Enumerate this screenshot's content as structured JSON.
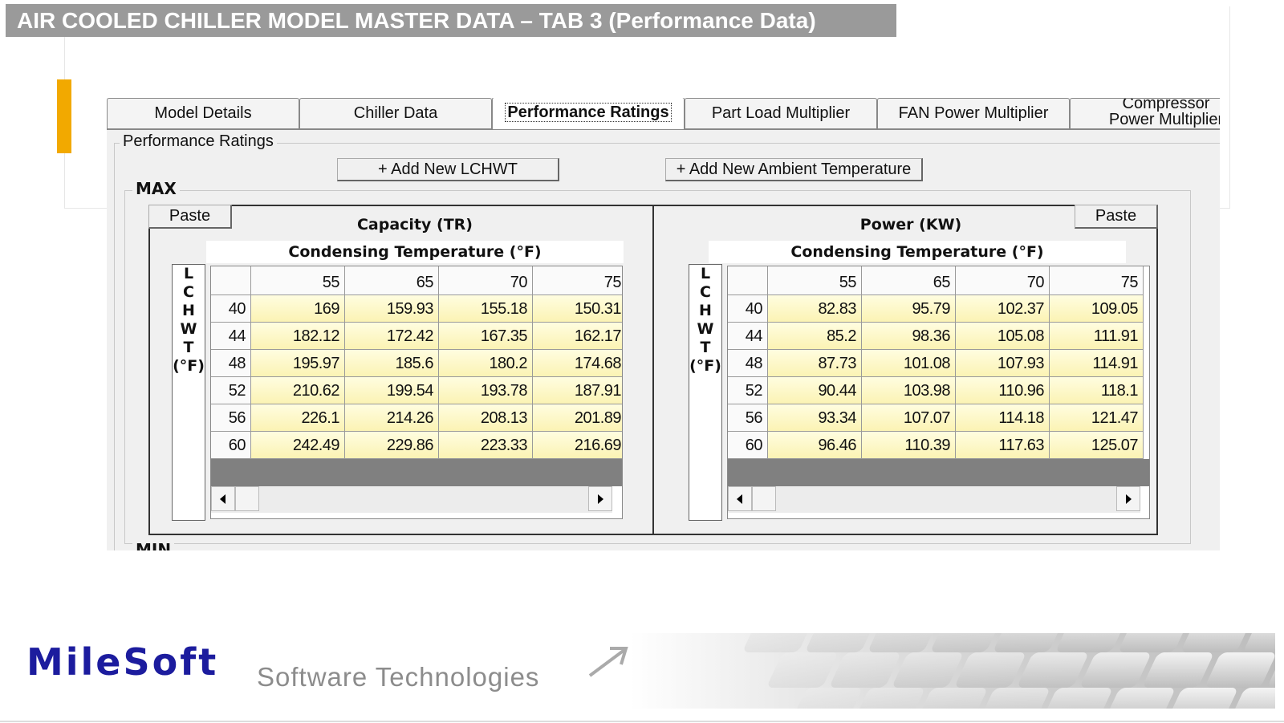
{
  "header": {
    "title": "AIR COOLED CHILLER MODEL MASTER DATA – TAB 3 (Performance Data)"
  },
  "tabs": [
    "Model Details",
    "Chiller Data",
    "Performance Ratings",
    "Part Load Multiplier",
    "FAN Power Multiplier",
    "Compressor Power Multiplier"
  ],
  "group_label": "Performance Ratings",
  "buttons": [
    "+ Add New LCHWT",
    "+ Add New Ambient Temperature"
  ],
  "max_label": "MAX",
  "min_label": "MIN",
  "grids": [
    {
      "paste": "Paste",
      "title": "Capacity (TR)",
      "subtitle": "Condensing Temperature (°F)",
      "row_axis": [
        "L",
        "C",
        "H",
        "W",
        "T",
        "(°F)"
      ],
      "columns": [
        55,
        65,
        70,
        75
      ],
      "row_labels": [
        40,
        44,
        48,
        52,
        56,
        60
      ],
      "rows": [
        [
          169,
          159.93,
          155.18,
          150.31
        ],
        [
          182.12,
          172.42,
          167.35,
          162.17
        ],
        [
          195.97,
          185.6,
          180.2,
          174.68
        ],
        [
          210.62,
          199.54,
          193.78,
          187.91
        ],
        [
          226.1,
          214.26,
          208.13,
          201.89
        ],
        [
          242.49,
          229.86,
          223.33,
          216.69
        ]
      ]
    },
    {
      "paste": "Paste",
      "title": "Power (KW)",
      "subtitle": "Condensing Temperature (°F)",
      "row_axis": [
        "L",
        "C",
        "H",
        "W",
        "T",
        "(°F)"
      ],
      "columns": [
        55,
        65,
        70,
        75
      ],
      "row_labels": [
        40,
        44,
        48,
        52,
        56,
        60
      ],
      "rows": [
        [
          82.83,
          95.79,
          102.37,
          109.05
        ],
        [
          85.2,
          98.36,
          105.08,
          111.91
        ],
        [
          87.73,
          101.08,
          107.93,
          114.91
        ],
        [
          90.44,
          103.98,
          110.96,
          118.1
        ],
        [
          93.34,
          107.07,
          114.18,
          121.47
        ],
        [
          96.46,
          110.39,
          117.63,
          125.07
        ]
      ]
    }
  ],
  "footer": {
    "brand": "MileSoft",
    "tagline": "Software Technologies"
  }
}
